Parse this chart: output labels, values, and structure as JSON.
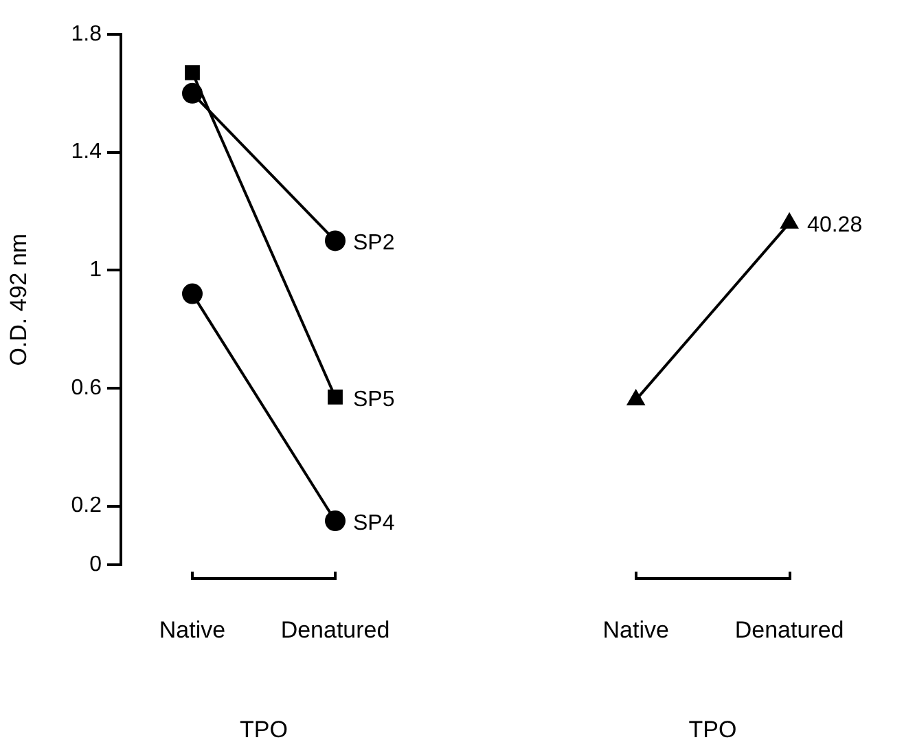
{
  "chart_data": [
    {
      "type": "line",
      "categories": [
        "Native",
        "Denatured"
      ],
      "xlabel": "TPO",
      "ylabel": "O.D. 492 nm",
      "ylim": [
        0,
        1.8
      ],
      "yticks": [
        0,
        0.2,
        0.6,
        1,
        1.4,
        1.8
      ],
      "grid": false,
      "legend": false,
      "series": [
        {
          "name": "SP2",
          "color": "#000000",
          "marker": "circle",
          "values": [
            1.6,
            1.1
          ]
        },
        {
          "name": "SP5",
          "color": "#000000",
          "marker": "square",
          "values": [
            1.67,
            0.57
          ]
        },
        {
          "name": "SP4",
          "color": "#000000",
          "marker": "circle",
          "values": [
            0.92,
            0.15
          ]
        }
      ]
    },
    {
      "type": "line",
      "categories": [
        "Native",
        "Denatured"
      ],
      "xlabel": "TPO",
      "ylim": [
        0,
        1.8
      ],
      "tick_labels": "x",
      "grid": false,
      "legend": false,
      "series": [
        {
          "name": "40.28",
          "color": "#000000",
          "marker": "triangle",
          "values": [
            0.56,
            1.16
          ]
        }
      ]
    }
  ]
}
